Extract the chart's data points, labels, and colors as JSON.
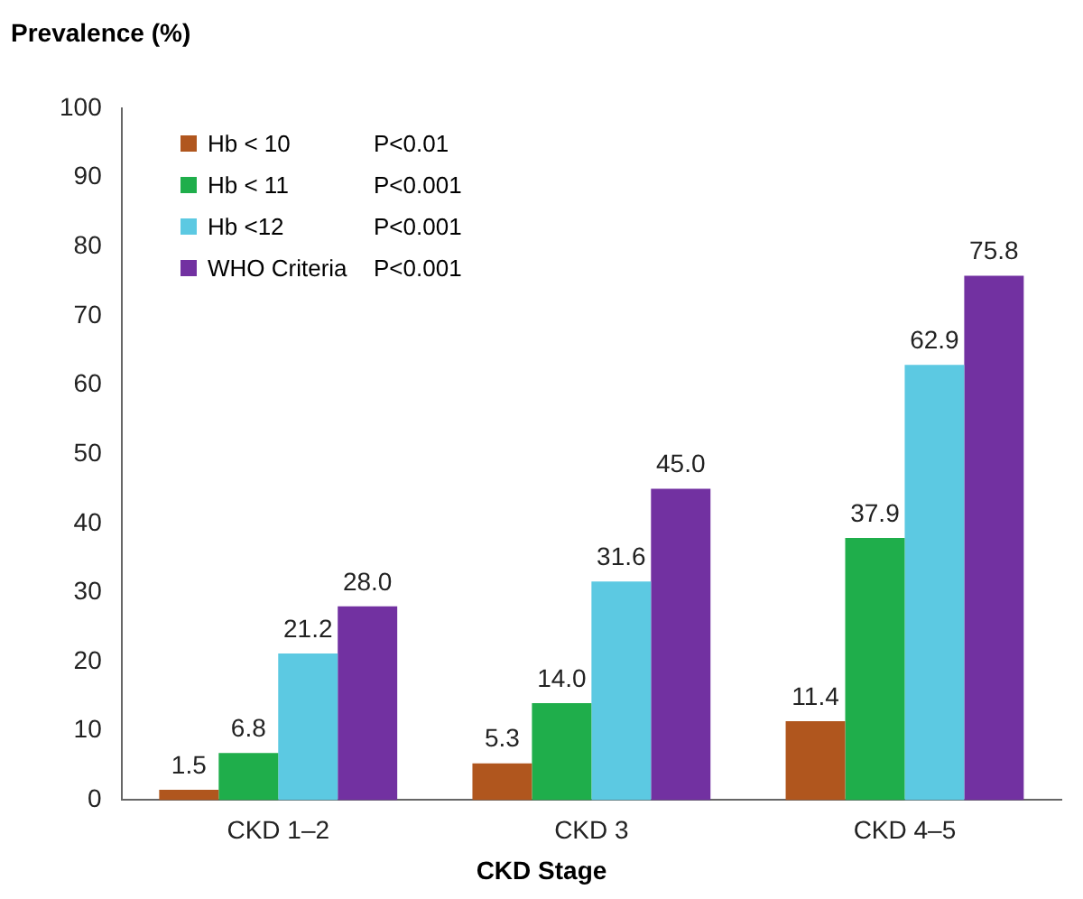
{
  "chart_data": {
    "type": "bar",
    "ylabel": "Prevalence (%)",
    "xlabel": "CKD Stage",
    "categories": [
      "CKD 1–2",
      "CKD 3",
      "CKD 4–5"
    ],
    "series": [
      {
        "name": "Hb < 10",
        "color": "#b0561e",
        "values": [
          1.5,
          5.3,
          11.4
        ],
        "value_labels": [
          "1.5",
          "5.3",
          "11.4"
        ]
      },
      {
        "name": "Hb < 11",
        "color": "#1fae4b",
        "values": [
          6.8,
          14.0,
          37.9
        ],
        "value_labels": [
          "6.8",
          "14.0",
          "37.9"
        ]
      },
      {
        "name": "Hb <12",
        "color": "#5cc9e2",
        "values": [
          21.2,
          31.6,
          62.9
        ],
        "value_labels": [
          "21.2",
          "31.6",
          "62.9"
        ]
      },
      {
        "name": "WHO Criteria",
        "color": "#7231a1",
        "values": [
          28.0,
          45.0,
          75.8
        ],
        "value_labels": [
          "28.0",
          "45.0",
          "75.8"
        ]
      }
    ],
    "annotations": [
      "P<0.01",
      "P<0.001",
      "P<0.001",
      "P<0.001"
    ],
    "ylim": [
      0,
      100
    ],
    "yticks": [
      0,
      10,
      20,
      30,
      40,
      50,
      60,
      70,
      80,
      90,
      100
    ],
    "grid": false,
    "legend": "top left"
  }
}
